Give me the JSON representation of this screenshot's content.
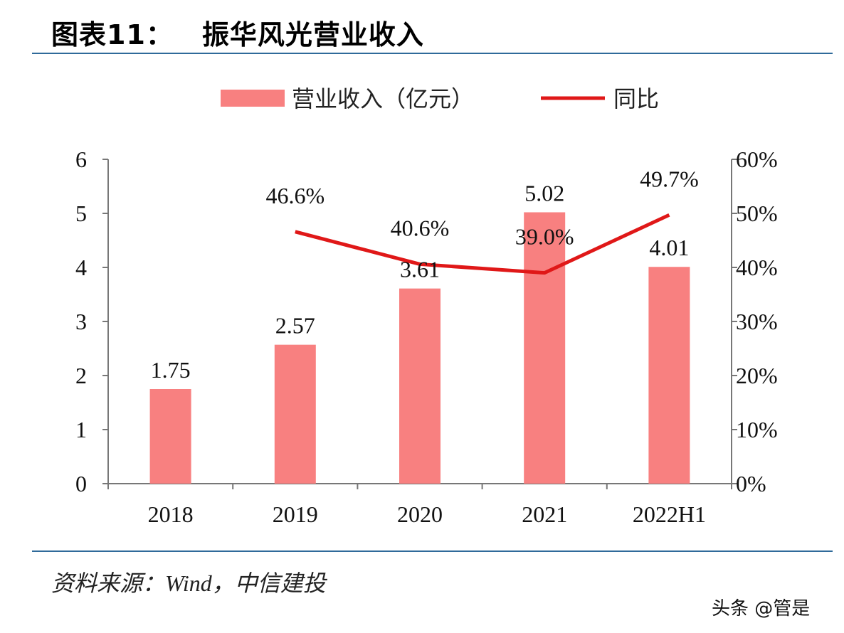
{
  "header": {
    "figure_no": "图表11：",
    "title": "振华风光营业收入"
  },
  "footer": {
    "source": "资料来源：Wind，中信建投",
    "watermark": "头条 @管是"
  },
  "colors": {
    "bar": "#f88080",
    "line": "#e01818",
    "rule": "#2f6a9a"
  },
  "chart_data": {
    "type": "bar+line",
    "categories": [
      "2018",
      "2019",
      "2020",
      "2021",
      "2022H1"
    ],
    "series": [
      {
        "name": "营业收入（亿元）",
        "type": "bar",
        "axis": "left",
        "values": [
          1.75,
          2.57,
          3.61,
          5.02,
          4.01
        ],
        "labels": [
          "1.75",
          "2.57",
          "3.61",
          "5.02",
          "4.01"
        ]
      },
      {
        "name": "同比",
        "type": "line",
        "axis": "right",
        "values": [
          null,
          46.6,
          40.6,
          39.0,
          49.7
        ],
        "labels": [
          "",
          "46.6%",
          "40.6%",
          "39.0%",
          "49.7%"
        ]
      }
    ],
    "y_left": {
      "range": [
        0,
        6
      ],
      "ticks": [
        "0",
        "1",
        "2",
        "3",
        "4",
        "5",
        "6"
      ]
    },
    "y_right": {
      "range": [
        0,
        60
      ],
      "ticks": [
        "0%",
        "10%",
        "20%",
        "30%",
        "40%",
        "50%",
        "60%"
      ]
    },
    "legend": "top-center",
    "grid": false
  }
}
